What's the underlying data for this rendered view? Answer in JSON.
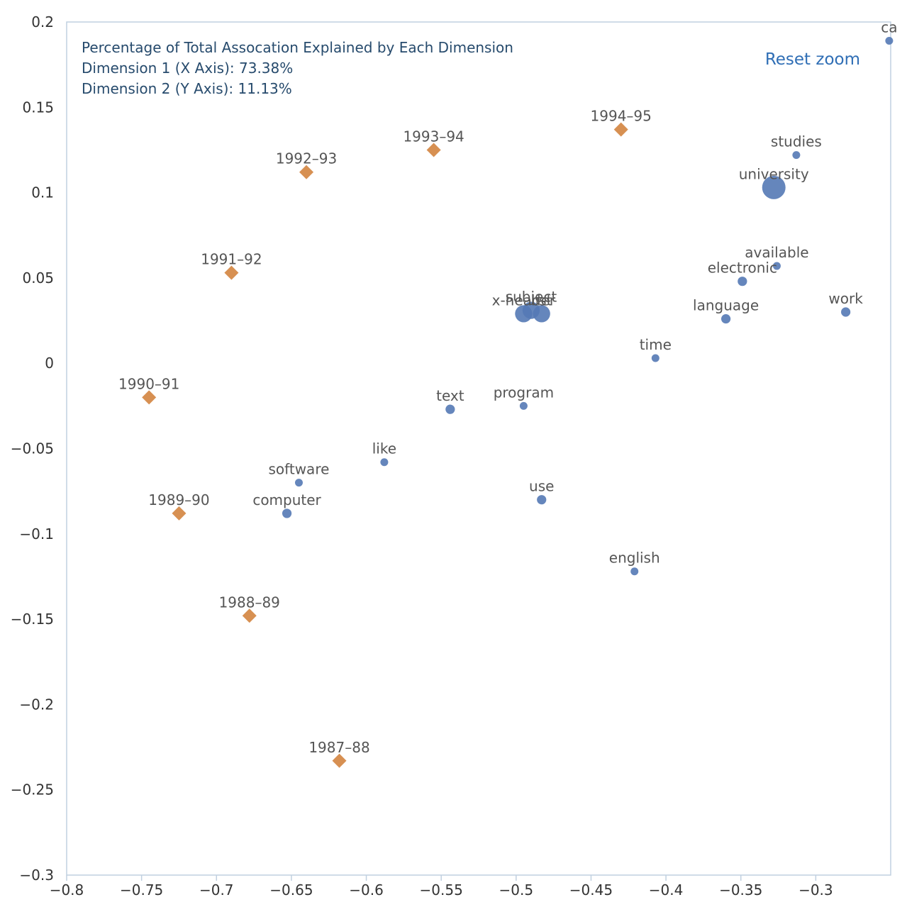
{
  "info": {
    "line1": "Percentage of Total Assocation Explained by Each Dimension",
    "line2": "Dimension 1 (X Axis): 73.38%",
    "line3": "Dimension 2 (Y Axis): 11.13%"
  },
  "controls": {
    "reset_zoom": "Reset zoom"
  },
  "colors": {
    "terms": "#5479b5",
    "periods": "#d58a49",
    "axis": "#c0d0e0"
  },
  "chart_data": {
    "type": "scatter",
    "title": "",
    "xlabel": "",
    "ylabel": "",
    "xlim": [
      -0.8,
      -0.25
    ],
    "ylim": [
      -0.3,
      0.2
    ],
    "x_ticks": [
      "−0.8",
      "−0.75",
      "−0.7",
      "−0.65",
      "−0.6",
      "−0.55",
      "−0.5",
      "−0.45",
      "−0.4",
      "−0.35",
      "−0.3"
    ],
    "x_tick_values": [
      -0.8,
      -0.75,
      -0.7,
      -0.65,
      -0.6,
      -0.55,
      -0.5,
      -0.45,
      -0.4,
      -0.35,
      -0.3
    ],
    "y_ticks": [
      "0.2",
      "0.15",
      "0.1",
      "0.05",
      "0",
      "−0.05",
      "−0.1",
      "−0.15",
      "−0.2",
      "−0.25",
      "−0.3"
    ],
    "y_tick_values": [
      0.2,
      0.15,
      0.1,
      0.05,
      0,
      -0.05,
      -0.1,
      -0.15,
      -0.2,
      -0.25,
      -0.3
    ],
    "grid": false,
    "series": [
      {
        "marker": "circle",
        "points": [
          {
            "label": "ca",
            "x": -0.251,
            "y": 0.189,
            "size": 1
          },
          {
            "label": "studies",
            "x": -0.313,
            "y": 0.122,
            "size": 1
          },
          {
            "label": "university",
            "x": -0.328,
            "y": 0.103,
            "size": 3
          },
          {
            "label": "available",
            "x": -0.326,
            "y": 0.057,
            "size": 1
          },
          {
            "label": "electronic",
            "x": -0.349,
            "y": 0.048,
            "size": 1.2
          },
          {
            "label": "work",
            "x": -0.28,
            "y": 0.03,
            "size": 1.2
          },
          {
            "label": "language",
            "x": -0.36,
            "y": 0.026,
            "size": 1.2
          },
          {
            "label": "time",
            "x": -0.407,
            "y": 0.003,
            "size": 1
          },
          {
            "label": "subject",
            "x": -0.49,
            "y": 0.031,
            "size": 2.2
          },
          {
            "label": "x-header",
            "x": -0.495,
            "y": 0.029,
            "size": 2.2
          },
          {
            "label": "list",
            "x": -0.483,
            "y": 0.029,
            "size": 2.2
          },
          {
            "label": "program",
            "x": -0.495,
            "y": -0.025,
            "size": 1
          },
          {
            "label": "text",
            "x": -0.544,
            "y": -0.027,
            "size": 1.2
          },
          {
            "label": "like",
            "x": -0.588,
            "y": -0.058,
            "size": 1
          },
          {
            "label": "software",
            "x": -0.645,
            "y": -0.07,
            "size": 1
          },
          {
            "label": "computer",
            "x": -0.653,
            "y": -0.088,
            "size": 1.2
          },
          {
            "label": "use",
            "x": -0.483,
            "y": -0.08,
            "size": 1.2
          },
          {
            "label": "english",
            "x": -0.421,
            "y": -0.122,
            "size": 1
          }
        ]
      },
      {
        "marker": "diamond",
        "points": [
          {
            "label": "1994–95",
            "x": -0.43,
            "y": 0.137
          },
          {
            "label": "1993–94",
            "x": -0.555,
            "y": 0.125
          },
          {
            "label": "1992–93",
            "x": -0.64,
            "y": 0.112
          },
          {
            "label": "1991–92",
            "x": -0.69,
            "y": 0.053
          },
          {
            "label": "1990–91",
            "x": -0.745,
            "y": -0.02
          },
          {
            "label": "1989–90",
            "x": -0.725,
            "y": -0.088
          },
          {
            "label": "1988–89",
            "x": -0.678,
            "y": -0.148
          },
          {
            "label": "1987–88",
            "x": -0.618,
            "y": -0.233
          }
        ]
      }
    ]
  }
}
